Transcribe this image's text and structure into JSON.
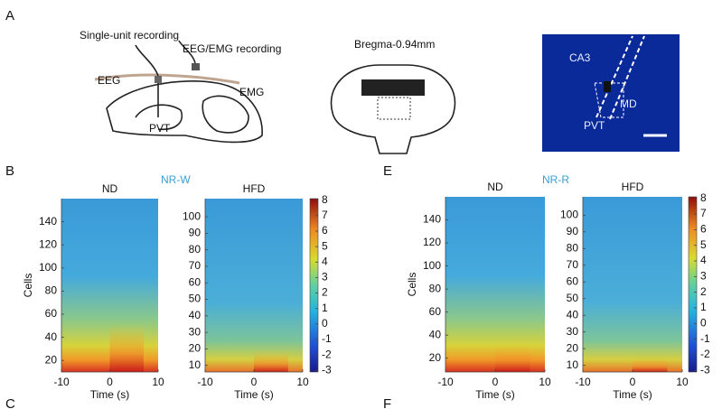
{
  "panel_labels": [
    "A",
    "B",
    "C",
    "E",
    "F"
  ],
  "panel_A": {
    "schematic_labels": [
      "Single-unit recording",
      "EEG/EMG recording",
      "EEG",
      "EMG",
      "PVT"
    ],
    "section_label": "Bregma-0.94mm",
    "histology_labels": [
      "CA3",
      "MD",
      "PVT"
    ]
  },
  "group_labels": [
    "NR-W",
    "NR-R"
  ],
  "chart_data": [
    {
      "type": "heatmap",
      "title": "ND",
      "xlabel": "Time (s)",
      "ylabel": "Cells",
      "xlim": [
        -10,
        10
      ],
      "xticks": [
        -10,
        0,
        10
      ],
      "ylim": [
        10,
        160
      ],
      "yticks": [
        20,
        40,
        60,
        80,
        100,
        120,
        140
      ]
    },
    {
      "type": "heatmap",
      "title": "HFD",
      "xlabel": "Time (s)",
      "xlim": [
        -10,
        10
      ],
      "xticks": [
        -10,
        0,
        10
      ],
      "ylim": [
        6,
        111
      ],
      "yticks": [
        10,
        20,
        30,
        40,
        50,
        60,
        70,
        80,
        90,
        100
      ],
      "colorbar": {
        "ylim": [
          -3.1,
          8.1
        ],
        "yticks": [
          -3,
          -2,
          -1,
          0,
          1,
          2,
          3,
          4,
          5,
          6,
          7,
          8
        ]
      }
    },
    {
      "type": "heatmap",
      "title": "ND",
      "xlabel": "Time (s)",
      "ylabel": "Cells",
      "xlim": [
        -10,
        10
      ],
      "xticks": [
        -10,
        0,
        10
      ],
      "ylim": [
        8,
        160
      ],
      "yticks": [
        20,
        40,
        60,
        80,
        100,
        120,
        140
      ]
    },
    {
      "type": "heatmap",
      "title": "HFD",
      "xlabel": "Time (s)",
      "xlim": [
        -10,
        10
      ],
      "xticks": [
        -10,
        0,
        10
      ],
      "ylim": [
        6,
        111
      ],
      "yticks": [
        10,
        20,
        30,
        40,
        50,
        60,
        70,
        80,
        90,
        100
      ],
      "colorbar": {
        "ylim": [
          -3.1,
          8.1
        ],
        "yticks": [
          -3,
          -2,
          -1,
          0,
          1,
          2,
          3,
          4,
          5,
          6,
          7,
          8
        ]
      }
    }
  ]
}
